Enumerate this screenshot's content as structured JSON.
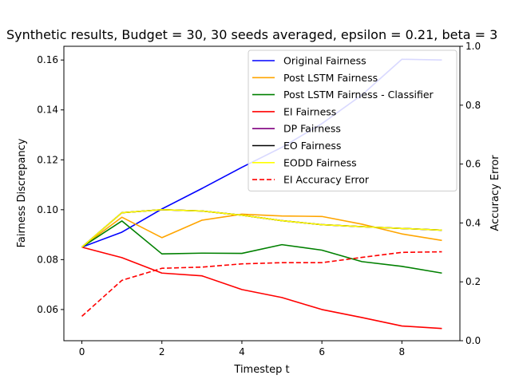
{
  "chart_data": {
    "type": "line",
    "title": "Synthetic results, Budget = 30, 30 seeds averaged, epsilon = 0.21, beta = 3",
    "xlabel": "Timestep t",
    "ylabel": "Fairness Discrepancy",
    "y2label": "Accuracy Error",
    "xlim": [
      -0.45,
      9.45
    ],
    "ylim": [
      0.0475,
      0.1655
    ],
    "y2lim": [
      0.0,
      1.0
    ],
    "xticks": [
      0,
      2,
      4,
      6,
      8
    ],
    "yticks": [
      0.06,
      0.08,
      0.1,
      0.12,
      0.14,
      0.16
    ],
    "y2ticks": [
      0.0,
      0.2,
      0.4,
      0.6,
      0.8,
      1.0
    ],
    "legend_position": "top-right",
    "x": [
      0,
      1,
      2,
      3,
      4,
      5,
      6,
      7,
      8,
      9
    ],
    "series": [
      {
        "name": "Original Fairness",
        "color": "#0000ff",
        "axis": "left",
        "dashed": false,
        "values": [
          0.085,
          0.091,
          0.1003,
          0.1085,
          0.117,
          0.125,
          0.1345,
          0.146,
          0.1603,
          0.16
        ]
      },
      {
        "name": "Post LSTM Fairness",
        "color": "#ffa500",
        "axis": "left",
        "dashed": false,
        "values": [
          0.085,
          0.097,
          0.0888,
          0.0958,
          0.0982,
          0.0975,
          0.0973,
          0.0942,
          0.0903,
          0.0877
        ]
      },
      {
        "name": "Post LSTM Fairness - Classifier",
        "color": "#008000",
        "axis": "left",
        "dashed": false,
        "values": [
          0.085,
          0.0955,
          0.0823,
          0.0826,
          0.0825,
          0.086,
          0.0838,
          0.0792,
          0.0773,
          0.0746
        ]
      },
      {
        "name": "EI Fairness",
        "color": "#ff0000",
        "axis": "left",
        "dashed": false,
        "values": [
          0.085,
          0.0808,
          0.0746,
          0.0735,
          0.068,
          0.0648,
          0.06,
          0.0568,
          0.0534,
          0.0524
        ]
      },
      {
        "name": "DP Fairness",
        "color": "#800080",
        "axis": "left",
        "dashed": false,
        "values": [
          0.085,
          0.0988,
          0.1,
          0.0995,
          0.0978,
          0.0956,
          0.094,
          0.0932,
          0.0925,
          0.0918
        ]
      },
      {
        "name": "EO Fairness",
        "color": "#000000",
        "axis": "left",
        "dashed": false,
        "values": [
          0.085,
          0.0988,
          0.1,
          0.0995,
          0.0978,
          0.0956,
          0.094,
          0.0932,
          0.0925,
          0.0918
        ]
      },
      {
        "name": "EODD Fairness",
        "color": "#ffff00",
        "axis": "left",
        "dashed": false,
        "values": [
          0.085,
          0.0988,
          0.1,
          0.0995,
          0.0978,
          0.0956,
          0.094,
          0.0932,
          0.0925,
          0.0918
        ]
      },
      {
        "name": "EI Accuracy Error",
        "color": "#ff0000",
        "axis": "right",
        "dashed": true,
        "values": [
          0.083,
          0.205,
          0.246,
          0.25,
          0.261,
          0.265,
          0.265,
          0.283,
          0.3,
          0.302
        ]
      }
    ]
  }
}
